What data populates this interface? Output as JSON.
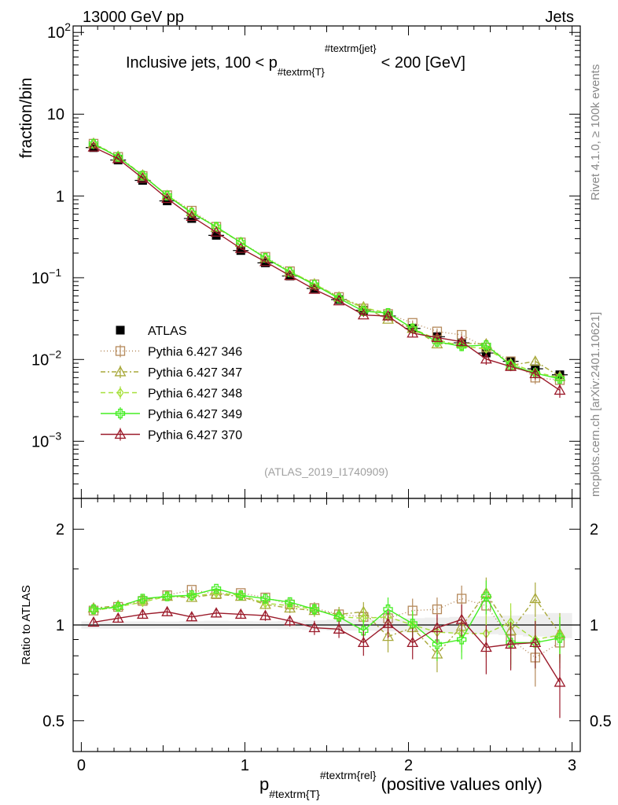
{
  "header": {
    "energy_label": "13000 GeV pp",
    "process_label": "Jets"
  },
  "side_labels": {
    "rivet": "Rivet 4.1.0, ≥ 100k events",
    "site": "mcplots.cern.ch [arXiv:2401.10621]"
  },
  "chart_data": [
    {
      "type": "line",
      "title": "Inclusive jets, 100 < p_{#textrm{T}}^{#textrm{jet}} < 200 [GeV]",
      "title_parts": {
        "prefix": "Inclusive jets, 100 < p",
        "sub": "#textrm{T}",
        "sup": "#textrm{jet}",
        "suffix": "< 200 [GeV]"
      },
      "ylabel": "fraction/bin",
      "yscale": "log",
      "ylim": [
        0.0002,
        120
      ],
      "xlim": [
        -0.05,
        3.05
      ],
      "y_ticks": [
        {
          "v": 0.001,
          "base": "10",
          "exp": "−3"
        },
        {
          "v": 0.01,
          "base": "10",
          "exp": "−2"
        },
        {
          "v": 0.1,
          "base": "10",
          "exp": "−1"
        },
        {
          "v": 1,
          "base": "1",
          "exp": ""
        },
        {
          "v": 10,
          "base": "10",
          "exp": ""
        },
        {
          "v": 100,
          "base": "10",
          "exp": "2"
        }
      ],
      "watermark": "(ATLAS_2019_I1740909)",
      "legend_position": "lower-left",
      "x": [
        0.075,
        0.225,
        0.375,
        0.525,
        0.675,
        0.825,
        0.975,
        1.125,
        1.275,
        1.425,
        1.575,
        1.725,
        1.875,
        2.025,
        2.175,
        2.325,
        2.475,
        2.625,
        2.775,
        2.925
      ],
      "series": [
        {
          "name": "ATLAS",
          "color": "#000000",
          "marker": "square-filled",
          "dash": "none",
          "values": [
            3.9,
            2.75,
            1.55,
            0.87,
            0.53,
            0.33,
            0.215,
            0.152,
            0.105,
            0.074,
            0.054,
            0.04,
            0.034,
            0.024,
            0.019,
            0.016,
            0.012,
            0.0095,
            0.0077,
            0.0065
          ],
          "errors": [
            0.1,
            0.07,
            0.04,
            0.02,
            0.015,
            0.01,
            0.006,
            0.004,
            0.003,
            0.0025,
            0.002,
            0.0015,
            0.0015,
            0.0012,
            0.001,
            0.001,
            0.0008,
            0.0007,
            0.0006,
            0.0006
          ]
        },
        {
          "name": "Pythia 6.427 346",
          "color": "#b5895b",
          "marker": "square-open",
          "dash": "1,3",
          "values": [
            4.35,
            3.0,
            1.75,
            1.02,
            0.66,
            0.42,
            0.27,
            0.18,
            0.12,
            0.083,
            0.058,
            0.042,
            0.036,
            0.028,
            0.022,
            0.02,
            0.014,
            0.0095,
            0.006,
            0.0056
          ],
          "errors": [
            0.1,
            0.07,
            0.04,
            0.02,
            0.015,
            0.01,
            0.006,
            0.004,
            0.003,
            0.003,
            0.002,
            0.002,
            0.002,
            0.002,
            0.002,
            0.002,
            0.0015,
            0.001,
            0.001,
            0.0008
          ]
        },
        {
          "name": "Pythia 6.427 347",
          "color": "#a8a83a",
          "marker": "triangle-open",
          "dash": "6,3,2,3",
          "values": [
            4.4,
            3.05,
            1.8,
            1.01,
            0.64,
            0.41,
            0.27,
            0.174,
            0.118,
            0.084,
            0.058,
            0.044,
            0.031,
            0.024,
            0.0155,
            0.0158,
            0.0155,
            0.0085,
            0.0095,
            0.0062
          ],
          "errors": [
            0.1,
            0.07,
            0.04,
            0.02,
            0.015,
            0.01,
            0.006,
            0.004,
            0.003,
            0.003,
            0.002,
            0.002,
            0.002,
            0.002,
            0.0015,
            0.0015,
            0.0015,
            0.001,
            0.001,
            0.0008
          ]
        },
        {
          "name": "Pythia 6.427 348",
          "color": "#a6e03a",
          "marker": "diamond-open",
          "dash": "6,4",
          "values": [
            4.3,
            3.0,
            1.78,
            1.02,
            0.63,
            0.42,
            0.27,
            0.175,
            0.12,
            0.084,
            0.057,
            0.043,
            0.037,
            0.024,
            0.0175,
            0.0145,
            0.0135,
            0.009,
            0.007,
            0.006
          ],
          "errors": [
            0.1,
            0.07,
            0.04,
            0.02,
            0.015,
            0.01,
            0.006,
            0.004,
            0.003,
            0.003,
            0.002,
            0.002,
            0.002,
            0.002,
            0.0015,
            0.0015,
            0.0015,
            0.001,
            0.001,
            0.0008
          ]
        },
        {
          "name": "Pythia 6.427 349",
          "color": "#44ee22",
          "marker": "cross-open",
          "dash": "none",
          "values": [
            4.35,
            3.0,
            1.78,
            1.01,
            0.62,
            0.42,
            0.27,
            0.175,
            0.117,
            0.082,
            0.056,
            0.039,
            0.037,
            0.024,
            0.0165,
            0.0145,
            0.015,
            0.0085,
            0.0068,
            0.0058
          ],
          "errors": [
            0.1,
            0.07,
            0.04,
            0.02,
            0.015,
            0.01,
            0.006,
            0.004,
            0.003,
            0.003,
            0.002,
            0.002,
            0.002,
            0.002,
            0.0015,
            0.0015,
            0.0015,
            0.001,
            0.001,
            0.0008
          ]
        },
        {
          "name": "Pythia 6.427 370",
          "color": "#9b1a2a",
          "marker": "triangle-open",
          "dash": "none",
          "values": [
            3.95,
            2.85,
            1.65,
            0.93,
            0.56,
            0.36,
            0.228,
            0.157,
            0.106,
            0.072,
            0.052,
            0.035,
            0.034,
            0.021,
            0.0185,
            0.0165,
            0.0101,
            0.0082,
            0.0067,
            0.0042
          ],
          "errors": [
            0.1,
            0.07,
            0.04,
            0.02,
            0.015,
            0.01,
            0.006,
            0.004,
            0.003,
            0.003,
            0.002,
            0.002,
            0.002,
            0.002,
            0.0015,
            0.0015,
            0.0015,
            0.001,
            0.001,
            0.0008
          ]
        }
      ]
    },
    {
      "type": "line",
      "title": "",
      "ylabel": "Ratio to ATLAS",
      "yscale": "log",
      "ylim": [
        0.4,
        2.5
      ],
      "y_ticks": [
        0.5,
        1,
        2
      ],
      "reference_line": 1,
      "xlabel_parts": {
        "prefix": "p",
        "sub": "#textrm{T}",
        "sup": "#textrm{rel}",
        "suffix": "(positive values only)"
      },
      "xlabel": "p_{#textrm{T}}^{#textrm{rel}} (positive values only)",
      "x_ticks": [
        0,
        1,
        2,
        3
      ],
      "xlim": [
        -0.05,
        3.05
      ],
      "x": [
        0.075,
        0.225,
        0.375,
        0.525,
        0.675,
        0.825,
        0.975,
        1.125,
        1.275,
        1.425,
        1.575,
        1.725,
        1.875,
        2.025,
        2.175,
        2.325,
        2.475,
        2.625,
        2.775,
        2.925
      ],
      "data_band": [
        0.026,
        0.026,
        0.026,
        0.025,
        0.028,
        0.03,
        0.028,
        0.027,
        0.03,
        0.035,
        0.04,
        0.04,
        0.045,
        0.05,
        0.055,
        0.06,
        0.065,
        0.07,
        0.08,
        0.09
      ],
      "series": [
        {
          "name": "Pythia 6.427 346",
          "color": "#b5895b",
          "marker": "square-open",
          "dash": "1,3",
          "values": [
            1.11,
            1.14,
            1.19,
            1.24,
            1.29,
            1.25,
            1.26,
            1.22,
            1.16,
            1.13,
            1.08,
            1.06,
            1.05,
            1.11,
            1.12,
            1.21,
            1.15,
            0.9,
            0.79,
            0.88
          ],
          "errors": [
            0.03,
            0.03,
            0.03,
            0.03,
            0.03,
            0.03,
            0.03,
            0.04,
            0.04,
            0.05,
            0.06,
            0.08,
            0.1,
            0.1,
            0.1,
            0.12,
            0.15,
            0.15,
            0.15,
            0.15
          ]
        },
        {
          "name": "Pythia 6.427 347",
          "color": "#a8a83a",
          "marker": "triangle-open",
          "dash": "6,3,2,3",
          "values": [
            1.13,
            1.15,
            1.2,
            1.23,
            1.22,
            1.25,
            1.23,
            1.16,
            1.13,
            1.11,
            1.08,
            1.1,
            0.92,
            0.98,
            0.81,
            0.99,
            1.26,
            0.96,
            1.21,
            0.94
          ],
          "errors": [
            0.03,
            0.03,
            0.03,
            0.03,
            0.03,
            0.03,
            0.03,
            0.04,
            0.04,
            0.05,
            0.06,
            0.08,
            0.1,
            0.1,
            0.1,
            0.12,
            0.15,
            0.15,
            0.15,
            0.15
          ]
        },
        {
          "name": "Pythia 6.427 348",
          "color": "#a6e03a",
          "marker": "diamond-open",
          "dash": "6,4",
          "values": [
            1.11,
            1.14,
            1.18,
            1.23,
            1.23,
            1.26,
            1.24,
            1.17,
            1.15,
            1.12,
            1.06,
            1.05,
            1.06,
            1.0,
            0.95,
            0.94,
            0.94,
            1.02,
            0.9,
            0.93
          ],
          "errors": [
            0.03,
            0.03,
            0.03,
            0.03,
            0.03,
            0.03,
            0.03,
            0.04,
            0.04,
            0.05,
            0.06,
            0.08,
            0.1,
            0.1,
            0.1,
            0.12,
            0.15,
            0.15,
            0.15,
            0.15
          ]
        },
        {
          "name": "Pythia 6.427 349",
          "color": "#44ee22",
          "marker": "cross-open",
          "dash": "none",
          "values": [
            1.12,
            1.14,
            1.21,
            1.23,
            1.24,
            1.3,
            1.24,
            1.21,
            1.18,
            1.12,
            1.06,
            0.96,
            1.12,
            1.01,
            0.87,
            0.9,
            1.23,
            0.88,
            0.88,
            0.91
          ],
          "errors": [
            0.03,
            0.03,
            0.03,
            0.03,
            0.03,
            0.03,
            0.03,
            0.04,
            0.04,
            0.05,
            0.06,
            0.08,
            0.1,
            0.1,
            0.1,
            0.12,
            0.15,
            0.15,
            0.15,
            0.15
          ]
        },
        {
          "name": "Pythia 6.427 370",
          "color": "#9b1a2a",
          "marker": "triangle-open",
          "dash": "none",
          "values": [
            1.02,
            1.05,
            1.08,
            1.1,
            1.06,
            1.09,
            1.08,
            1.07,
            1.03,
            0.98,
            0.97,
            0.88,
            1.01,
            0.88,
            0.98,
            1.04,
            0.85,
            0.87,
            0.88,
            0.66
          ],
          "errors": [
            0.03,
            0.03,
            0.03,
            0.03,
            0.03,
            0.03,
            0.03,
            0.04,
            0.04,
            0.05,
            0.06,
            0.08,
            0.1,
            0.1,
            0.1,
            0.12,
            0.15,
            0.15,
            0.15,
            0.15
          ]
        }
      ]
    }
  ]
}
